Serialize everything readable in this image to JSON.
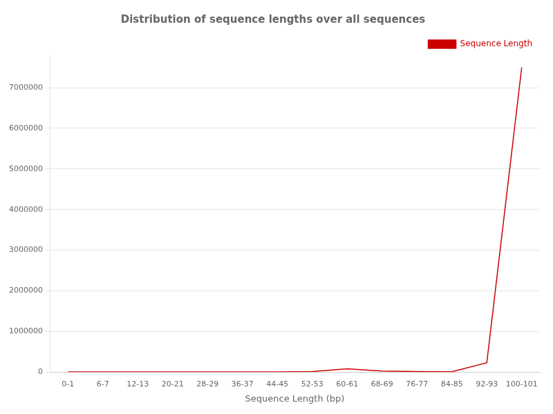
{
  "chart_data": {
    "type": "line",
    "title": "Distribution of sequence lengths over all sequences",
    "xlabel": "Sequence Length (bp)",
    "categories": [
      "0-1",
      "6-7",
      "12-13",
      "20-21",
      "28-29",
      "36-37",
      "44-45",
      "52-53",
      "60-61",
      "68-69",
      "76-77",
      "84-85",
      "92-93",
      "100-101"
    ],
    "series": [
      {
        "name": "Sequence Length",
        "color": "#cc0000",
        "values": [
          3000,
          1500,
          1500,
          1500,
          2000,
          2500,
          4000,
          12000,
          80000,
          25000,
          12000,
          6000,
          230000,
          7500000
        ]
      }
    ],
    "ylim": [
      0,
      7800000
    ],
    "yticks": [
      0,
      1000000,
      2000000,
      3000000,
      4000000,
      5000000,
      6000000,
      7000000
    ],
    "grid": true,
    "legend": "upper right"
  }
}
